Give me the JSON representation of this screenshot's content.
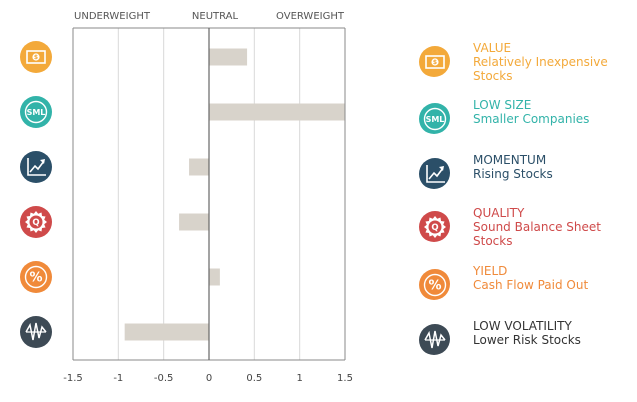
{
  "chart_data": {
    "type": "bar",
    "orientation": "horizontal",
    "zone_labels": [
      "UNDERWEIGHT",
      "NEUTRAL",
      "OVERWEIGHT"
    ],
    "categories": [
      "VALUE",
      "LOW SIZE",
      "MOMENTUM",
      "QUALITY",
      "YIELD",
      "LOW VOLATILITY"
    ],
    "values": [
      0.42,
      1.5,
      -0.22,
      -0.33,
      0.12,
      -0.93
    ],
    "xlim": [
      -1.5,
      1.5
    ],
    "xticks": [
      -1.5,
      -1,
      -0.5,
      0,
      0.5,
      1,
      1.5
    ],
    "xtick_labels": [
      "-1.5",
      "-1",
      "-0.5",
      "0",
      "0.5",
      "1",
      "1.5"
    ],
    "grid": "vertical",
    "bar_color": "#d8d3cb",
    "legend": [
      {
        "title": "VALUE",
        "desc_lines": [
          "Relatively Inexpensive",
          "Stocks"
        ],
        "color": "#f3a93a",
        "icon": "dollar-bill-icon"
      },
      {
        "title": "LOW SIZE",
        "desc_lines": [
          "Smaller Companies"
        ],
        "color": "#32b3a9",
        "icon": "sml-icon",
        "icon_text": "SML"
      },
      {
        "title": "MOMENTUM",
        "desc_lines": [
          "Rising Stocks"
        ],
        "color": "#2b4f68",
        "icon": "rising-chart-icon"
      },
      {
        "title": "QUALITY",
        "desc_lines": [
          "Sound Balance Sheet",
          "Stocks"
        ],
        "color": "#cf4a4a",
        "icon": "quality-seal-icon",
        "icon_text": "Q"
      },
      {
        "title": "YIELD",
        "desc_lines": [
          "Cash Flow Paid Out"
        ],
        "color": "#f08a3a",
        "icon": "percent-icon",
        "icon_text": "%"
      },
      {
        "title": "LOW VOLATILITY",
        "desc_lines": [
          "Lower Risk Stocks"
        ],
        "color": "#3d4a55",
        "icon": "volatility-wave-icon"
      }
    ]
  }
}
